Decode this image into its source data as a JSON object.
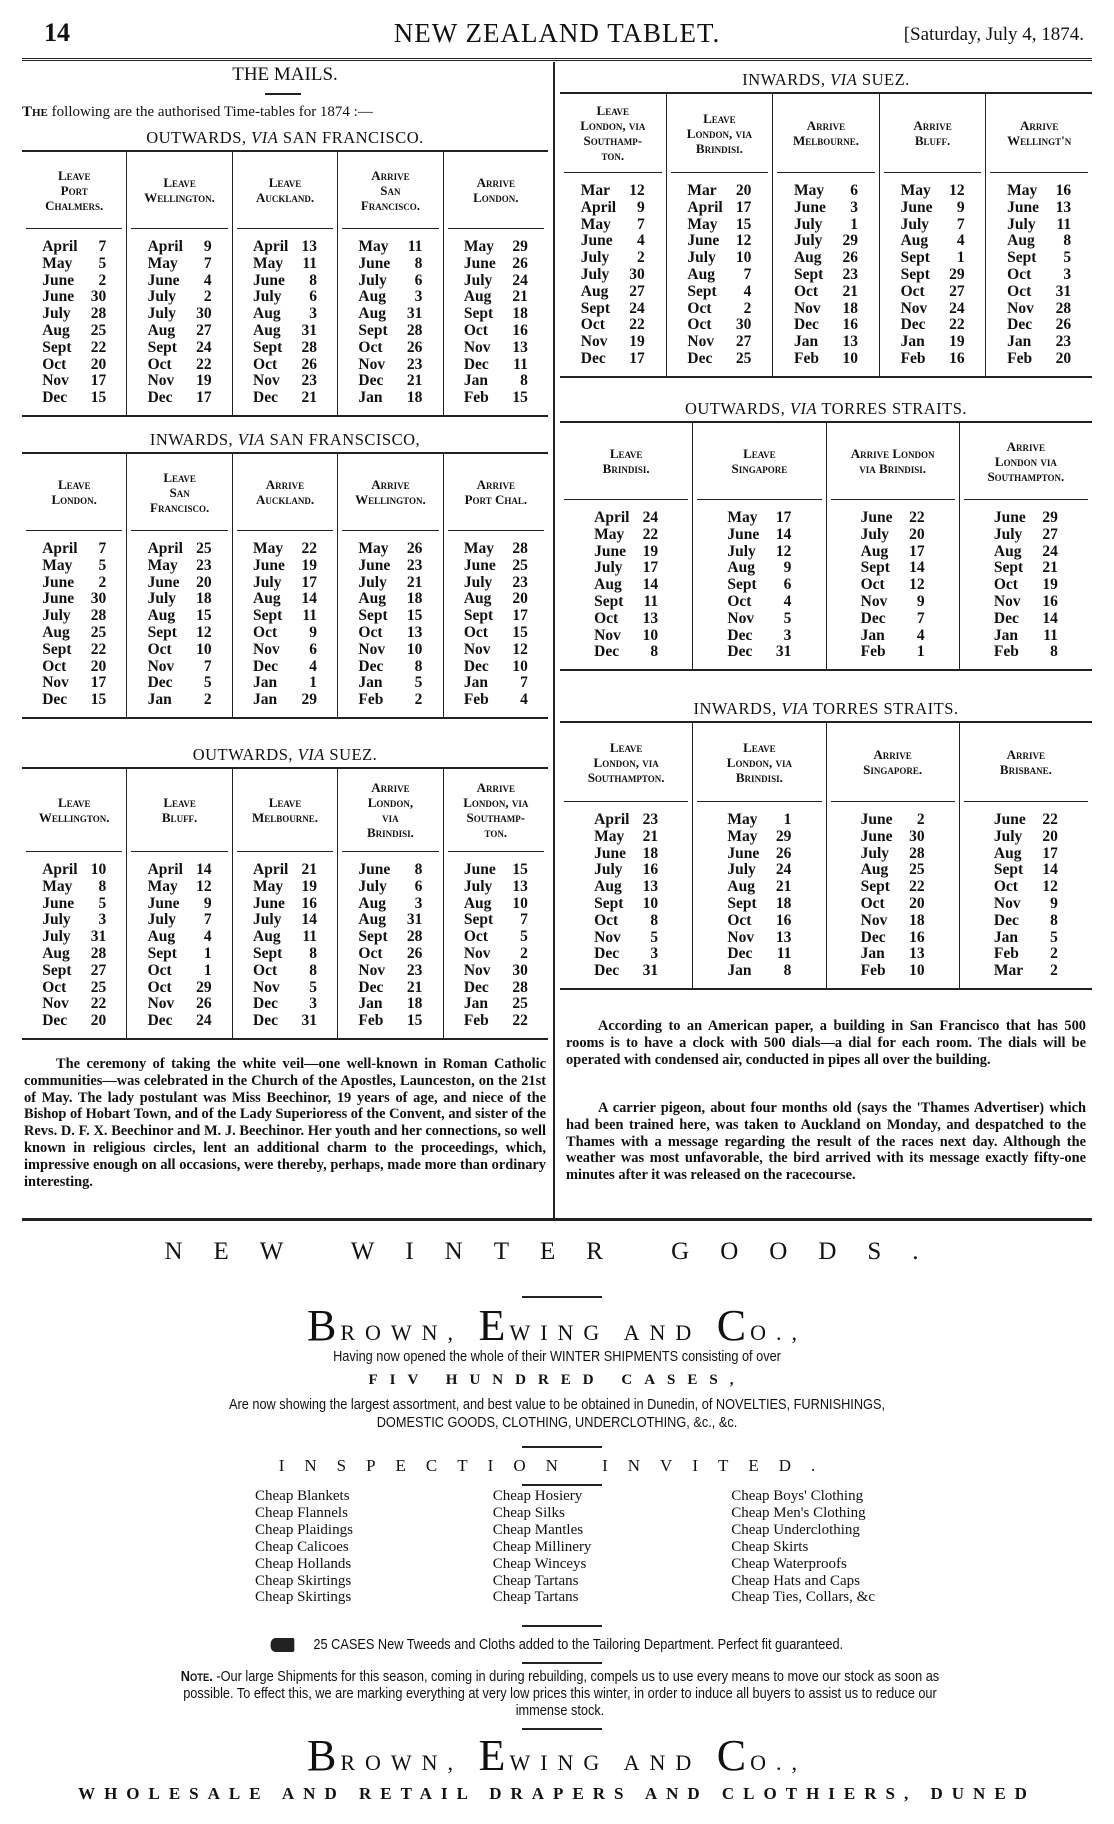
{
  "header": {
    "page_number": "14",
    "masthead": "NEW ZEALAND TABLET.",
    "dateline": "[Saturday, July 4, 1874."
  },
  "mails": {
    "title": "THE MAILS.",
    "intro_lead": "The",
    "intro_rest": " following are the authorised Time-tables for 1874 :—"
  },
  "tables": [
    {
      "title_pre": "OUTWARDS,",
      "title_via": "VIA",
      "title_post": "SAN FRANCISCO.",
      "headers": [
        "Leave\nPort\nChalmers.",
        "Leave\nWellington.",
        "Leave\nAuckland.",
        "Arrive\nSan\nFrancisco.",
        "Arrive\nLondon."
      ],
      "columns": [
        [
          "April 7",
          "May 5",
          "June 2",
          "June 30",
          "July 28",
          "Aug 25",
          "Sept 22",
          "Oct 20",
          "Nov 17",
          "Dec 15"
        ],
        [
          "April 9",
          "May 7",
          "June 4",
          "July 2",
          "July 30",
          "Aug 27",
          "Sept 24",
          "Oct 22",
          "Nov 19",
          "Dec 17"
        ],
        [
          "April 13",
          "May 11",
          "June 8",
          "July 6",
          "Aug 3",
          "Aug 31",
          "Sept 28",
          "Oct 26",
          "Nov 23",
          "Dec 21"
        ],
        [
          "May 11",
          "June 8",
          "July 6",
          "Aug 3",
          "Aug 31",
          "Sept 28",
          "Oct 26",
          "Nov 23",
          "Dec 21",
          "Jan 18"
        ],
        [
          "May 29",
          "June 26",
          "July 24",
          "Aug 21",
          "Sept 18",
          "Oct 16",
          "Nov 13",
          "Dec 11",
          "Jan 8",
          "Feb 15"
        ]
      ]
    },
    {
      "title_pre": "INWARDS,",
      "title_via": "VIA",
      "title_post": "SAN FRANSCISCO,",
      "headers": [
        "Leave\nLondon.",
        "Leave\nSan\nFrancisco.",
        "Arrive\nAuckland.",
        "Arrive\nWellington.",
        "Arrive\nPort Chal."
      ],
      "columns": [
        [
          "April 7",
          "May 5",
          "June 2",
          "June 30",
          "July 28",
          "Aug 25",
          "Sept 22",
          "Oct 20",
          "Nov 17",
          "Dec 15"
        ],
        [
          "April 25",
          "May 23",
          "June 20",
          "July 18",
          "Aug 15",
          "Sept 12",
          "Oct 10",
          "Nov 7",
          "Dec 5",
          "Jan 2"
        ],
        [
          "May 22",
          "June 19",
          "July 17",
          "Aug 14",
          "Sept 11",
          "Oct 9",
          "Nov 6",
          "Dec 4",
          "Jan 1",
          "Jan 29"
        ],
        [
          "May 26",
          "June 23",
          "July 21",
          "Aug 18",
          "Sept 15",
          "Oct 13",
          "Nov 10",
          "Dec 8",
          "Jan 5",
          "Feb 2"
        ],
        [
          "May 28",
          "June 25",
          "July 23",
          "Aug 20",
          "Sept 17",
          "Oct 15",
          "Nov 12",
          "Dec 10",
          "Jan 7",
          "Feb 4"
        ]
      ]
    },
    {
      "title_pre": "OUTWARDS,",
      "title_via": "VIA",
      "title_post": "SUEZ.",
      "headers": [
        "Leave\nWellington.",
        "Leave\nBluff.",
        "Leave\nMelbourne.",
        "Arrive\nLondon,\nvia\nBrindisi.",
        "Arrive\nLondon, via\nSouthamp-\nton."
      ],
      "columns": [
        [
          "April 10",
          "May 8",
          "June 5",
          "July 3",
          "July 31",
          "Aug 28",
          "Sept 27",
          "Oct 25",
          "Nov 22",
          "Dec 20"
        ],
        [
          "April 14",
          "May 12",
          "June 9",
          "July 7",
          "Aug 4",
          "Sept 1",
          "Oct 1",
          "Oct 29",
          "Nov 26",
          "Dec 24"
        ],
        [
          "April 21",
          "May 19",
          "June 16",
          "July 14",
          "Aug 11",
          "Sept 8",
          "Oct 8",
          "Nov 5",
          "Dec 3",
          "Dec 31"
        ],
        [
          "June 8",
          "July 6",
          "Aug 3",
          "Aug 31",
          "Sept 28",
          "Oct 26",
          "Nov 23",
          "Dec 21",
          "Jan 18",
          "Feb 15"
        ],
        [
          "June 15",
          "July 13",
          "Aug 10",
          "Sept 7",
          "Oct 5",
          "Nov 2",
          "Nov 30",
          "Dec 28",
          "Jan 25",
          "Feb 22"
        ]
      ]
    },
    {
      "title_pre": "INWARDS,",
      "title_via": "VIA",
      "title_post": "SUEZ.",
      "headers": [
        "Leave\nLondon, via\nSouthamp-\nton.",
        "Leave\nLondon, via\nBrindisi.",
        "Arrive\nMelbourne.",
        "Arrive\nBluff.",
        "Arrive\nWellingt'n"
      ],
      "columns": [
        [
          "Mar 12",
          "April 9",
          "May 7",
          "June 4",
          "July 2",
          "July 30",
          "Aug 27",
          "Sept 24",
          "Oct 22",
          "Nov 19",
          "Dec 17"
        ],
        [
          "Mar 20",
          "April 17",
          "May 15",
          "June 12",
          "July 10",
          "Aug 7",
          "Sept 4",
          "Oct 2",
          "Oct 30",
          "Nov 27",
          "Dec 25"
        ],
        [
          "May 6",
          "June 3",
          "July 1",
          "July 29",
          "Aug 26",
          "Sept 23",
          "Oct 21",
          "Nov 18",
          "Dec 16",
          "Jan 13",
          "Feb 10"
        ],
        [
          "May 12",
          "June 9",
          "July 7",
          "Aug 4",
          "Sept 1",
          "Sept 29",
          "Oct 27",
          "Nov 24",
          "Dec 22",
          "Jan 19",
          "Feb 16"
        ],
        [
          "May 16",
          "June 13",
          "July 11",
          "Aug 8",
          "Sept 5",
          "Oct 3",
          "Oct 31",
          "Nov 28",
          "Dec 26",
          "Jan 23",
          "Feb 20"
        ]
      ]
    },
    {
      "title_pre": "OUTWARDS,",
      "title_via": "VIA",
      "title_post": "TORRES STRAITS.",
      "headers": [
        "Leave\nBrindisi.",
        "Leave\nSingapore",
        "Arrive London\nvia Brindisi.",
        "Arrive\nLondon via\nSouthampton."
      ],
      "columns": [
        [
          "April 24",
          "May 22",
          "June 19",
          "July 17",
          "Aug 14",
          "Sept 11",
          "Oct 13",
          "Nov 10",
          "Dec 8"
        ],
        [
          "May 17",
          "June 14",
          "July 12",
          "Aug 9",
          "Sept 6",
          "Oct 4",
          "Nov 5",
          "Dec 3",
          "Dec 31"
        ],
        [
          "June 22",
          "July 20",
          "Aug 17",
          "Sept 14",
          "Oct 12",
          "Nov 9",
          "Dec 7",
          "Jan 4",
          "Feb 1"
        ],
        [
          "June 29",
          "July 27",
          "Aug 24",
          "Sept 21",
          "Oct 19",
          "Nov 16",
          "Dec 14",
          "Jan 11",
          "Feb 8"
        ]
      ]
    },
    {
      "title_pre": "INWARDS,",
      "title_via": "VIA",
      "title_post": "TORRES STRAITS.",
      "headers": [
        "Leave\nLondon, via\nSouthampton.",
        "Leave\nLondon, via\nBrindisi.",
        "Arrive\nSingapore.",
        "Arrive\nBrisbane."
      ],
      "columns": [
        [
          "April 23",
          "May 21",
          "June 18",
          "July 16",
          "Aug 13",
          "Sept 10",
          "Oct 8",
          "Nov 5",
          "Dec 3",
          "Dec 31"
        ],
        [
          "May 1",
          "May 29",
          "June 26",
          "July 24",
          "Aug 21",
          "Sept 18",
          "Oct 16",
          "Nov 13",
          "Dec 11",
          "Jan 8"
        ],
        [
          "June 2",
          "June 30",
          "July 28",
          "Aug 25",
          "Sept 22",
          "Oct 20",
          "Nov 18",
          "Dec 16",
          "Jan 13",
          "Feb 10"
        ],
        [
          "June 22",
          "July 20",
          "Aug 17",
          "Sept 14",
          "Oct 12",
          "Nov 9",
          "Dec 8",
          "Jan 5",
          "Feb 2",
          "Mar 2"
        ]
      ]
    }
  ],
  "articles": {
    "veil": "The ceremony of taking the white veil—one well-known in Roman Catholic communities—was celebrated in the Church of the Apostles, Launceston, on the 21st of May. The lady postulant was Miss Beechinor, 19 years of age, and niece of the Bishop of Hobart Town, and of the Lady Superioress of the Convent, and sister of the Revs. D. F. X. Beechinor and M. J. Beechinor. Her youth and her connections, so well known in religious circles, lent an additional charm to the proceedings, which, impressive enough on all occasions, were thereby, perhaps, made more than ordinary interesting.",
    "clock": "According to an American paper, a building in San Francisco that has 500 rooms is to have a clock with 500 dials—a dial for each room. The dials will be operated with condensed air, conducted in pipes all over the building.",
    "pigeon": "A carrier pigeon, about four months old (says the 'Thames Advertiser) which had been trained here, was taken to Auckland on Monday, and despatched to the Thames with a message regarding the result of the races next day. Although the weather was most unfavorable, the bird arrived with its message exactly fifty-one minutes after it was released on the racecourse."
  },
  "advert": {
    "headline": "NEW WINTER GOODS.",
    "firm": {
      "b": "B",
      "rown": "ROWN,",
      "e": "E",
      "wing": "WING AND",
      "c": "C",
      "o": "O.,"
    },
    "line1": "Having now opened the whole of their WINTER SHIPMENTS consisting of over",
    "line2": "FIV HUNDRED CASES,",
    "line3": "Are now showing the largest assortment, and best value to be obtained in Dunedin, of NOVELTIES, FURNISHINGS,",
    "line4": "DOMESTIC GOODS, CLOTHING, UNDERCLOTHING, &c., &c.",
    "inspection": "INSPECTION INVITED.",
    "goods": [
      [
        "Cheap Blankets",
        "Cheap Flannels",
        "Cheap Plaidings",
        "Cheap Calicoes",
        "Cheap Hollands",
        "Cheap Skirtings",
        "Cheap Skirtings"
      ],
      [
        "Cheap Hosiery",
        "Cheap Silks",
        "Cheap Mantles",
        "Cheap Millinery",
        "Cheap Winceys",
        "Cheap Tartans",
        "Cheap Tartans"
      ],
      [
        "Cheap Boys' Clothing",
        "Cheap Men's Clothing",
        "Cheap Underclothing",
        "Cheap Skirts",
        "Cheap Waterproofs",
        "Cheap Hats and Caps",
        "Cheap Ties, Collars, &c"
      ]
    ],
    "tailoring_icon": "pointing-hand-icon",
    "tailoring": "25 CASES New Tweeds and Cloths added to the Tailoring Department.   Perfect fit guaranteed.",
    "note_label": "Note.",
    "note": " -Our large Shipments for this season, coming in during rebuilding, compels us to use every means to move our stock as soon as possible. To effect this, we are marking everything at very low prices this winter, in order to induce all buyers to assist us to reduce our immense stock.",
    "tagline": "WHOLESALE AND RETAIL DRAPERS AND CLOTHIERS, DUNED"
  }
}
